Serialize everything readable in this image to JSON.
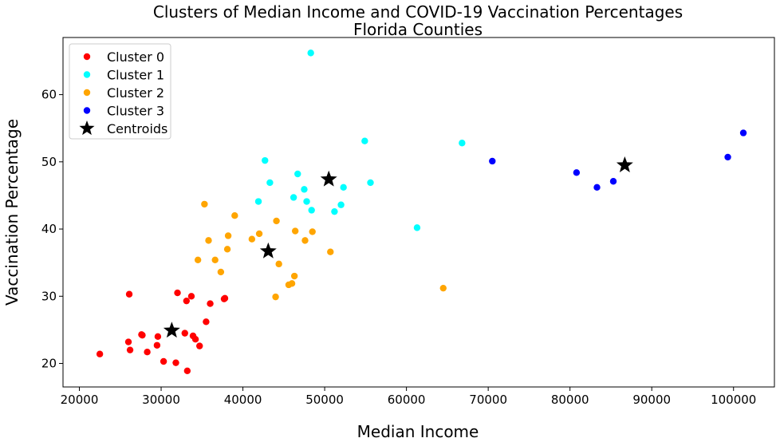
{
  "chart_data": {
    "type": "scatter",
    "title": "Clusters of Median Income and COVID-19 Vaccination Percentages",
    "subtitle": "Florida Counties",
    "xlabel": "Median Income",
    "ylabel": "Vaccination Percentage",
    "xlim": [
      18000,
      105000
    ],
    "ylim": [
      16.5,
      68.5
    ],
    "xticks": [
      20000,
      30000,
      40000,
      50000,
      60000,
      70000,
      80000,
      90000,
      100000
    ],
    "yticks": [
      20,
      30,
      40,
      50,
      60
    ],
    "grid": false,
    "legend": "top-left",
    "series": [
      {
        "name": "Cluster 0",
        "color": "#ff0000",
        "marker": "circle",
        "points": [
          [
            22500,
            21.4
          ],
          [
            26100,
            30.3
          ],
          [
            26000,
            23.2
          ],
          [
            26200,
            22.0
          ],
          [
            27600,
            24.3
          ],
          [
            27700,
            24.2
          ],
          [
            28300,
            21.7
          ],
          [
            29500,
            22.7
          ],
          [
            29600,
            24.0
          ],
          [
            30300,
            20.3
          ],
          [
            31800,
            20.1
          ],
          [
            32000,
            30.5
          ],
          [
            32900,
            24.5
          ],
          [
            33100,
            29.3
          ],
          [
            33200,
            18.9
          ],
          [
            33700,
            30.0
          ],
          [
            33900,
            24.1
          ],
          [
            34200,
            23.6
          ],
          [
            34700,
            22.6
          ],
          [
            35500,
            26.2
          ],
          [
            36000,
            28.9
          ],
          [
            37800,
            29.7
          ],
          [
            37700,
            29.6
          ]
        ]
      },
      {
        "name": "Cluster 1",
        "color": "#00ffff",
        "marker": "circle",
        "points": [
          [
            48300,
            66.2
          ],
          [
            54900,
            53.1
          ],
          [
            66800,
            52.8
          ],
          [
            42700,
            50.2
          ],
          [
            46700,
            48.2
          ],
          [
            43300,
            46.9
          ],
          [
            55600,
            46.9
          ],
          [
            47500,
            45.9
          ],
          [
            52300,
            46.2
          ],
          [
            46200,
            44.7
          ],
          [
            41900,
            44.1
          ],
          [
            47800,
            44.1
          ],
          [
            52000,
            43.6
          ],
          [
            48400,
            42.8
          ],
          [
            51200,
            42.6
          ],
          [
            61300,
            40.2
          ]
        ]
      },
      {
        "name": "Cluster 2",
        "color": "#ffa500",
        "marker": "circle",
        "points": [
          [
            35300,
            43.7
          ],
          [
            39000,
            42.0
          ],
          [
            44100,
            41.2
          ],
          [
            38200,
            39.0
          ],
          [
            42000,
            39.3
          ],
          [
            46400,
            39.7
          ],
          [
            48500,
            39.6
          ],
          [
            35800,
            38.3
          ],
          [
            41100,
            38.5
          ],
          [
            47600,
            38.3
          ],
          [
            38100,
            37.0
          ],
          [
            50700,
            36.6
          ],
          [
            34500,
            35.4
          ],
          [
            36600,
            35.4
          ],
          [
            44400,
            34.8
          ],
          [
            37300,
            33.6
          ],
          [
            46300,
            33.0
          ],
          [
            46000,
            31.9
          ],
          [
            45600,
            31.7
          ],
          [
            64500,
            31.2
          ],
          [
            44000,
            29.9
          ]
        ]
      },
      {
        "name": "Cluster 3",
        "color": "#0000ff",
        "marker": "circle",
        "points": [
          [
            101200,
            54.3
          ],
          [
            99300,
            50.7
          ],
          [
            70500,
            50.1
          ],
          [
            80800,
            48.4
          ],
          [
            85300,
            47.1
          ],
          [
            83300,
            46.2
          ]
        ]
      },
      {
        "name": "Centroids",
        "color": "#000000",
        "marker": "star",
        "points": [
          [
            31300,
            24.9
          ],
          [
            43100,
            36.7
          ],
          [
            50500,
            47.4
          ],
          [
            86700,
            49.5
          ]
        ]
      }
    ]
  }
}
